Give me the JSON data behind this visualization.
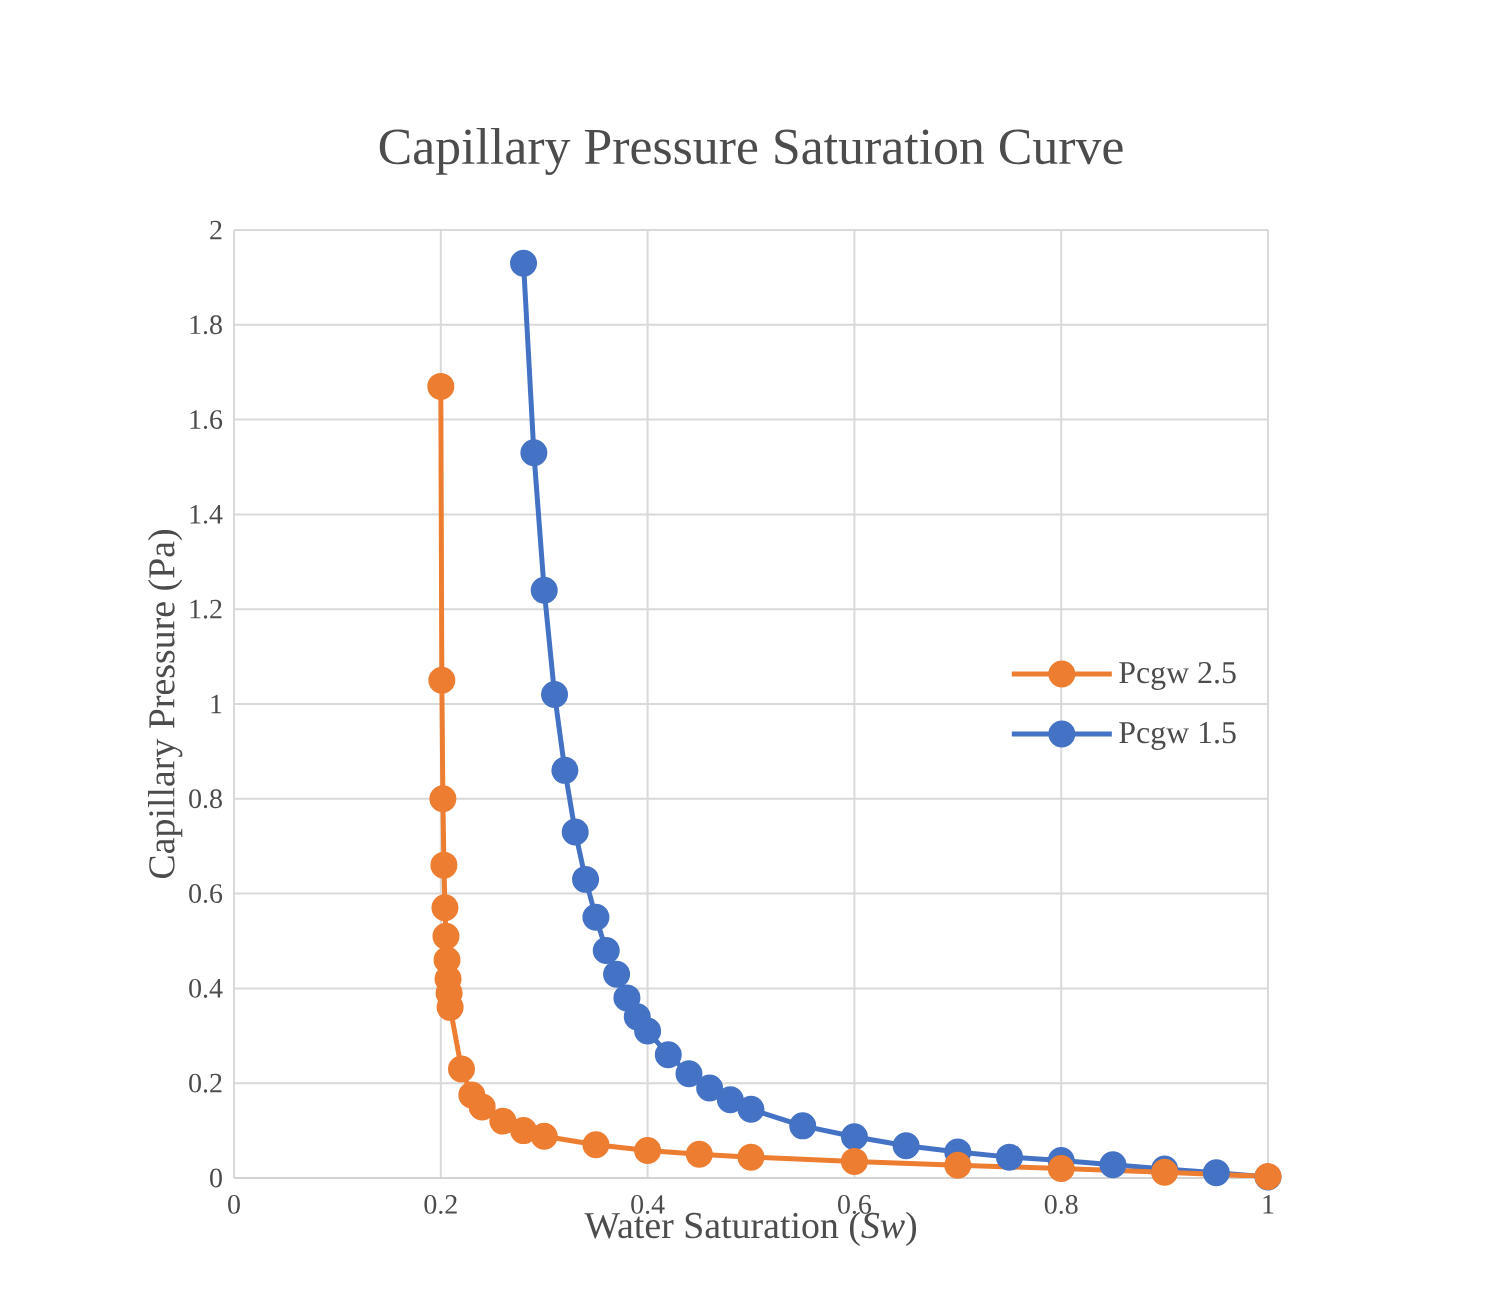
{
  "chart_data": {
    "type": "line",
    "title": "Capillary Pressure Saturation Curve",
    "xlabel": "Water Saturation (*Sw*)",
    "ylabel": "Capillary Pressure (Pa)",
    "xlim": [
      0,
      1
    ],
    "ylim": [
      0,
      2
    ],
    "xticks": [
      0,
      0.2,
      0.4,
      0.6,
      0.8,
      1
    ],
    "yticks": [
      0,
      0.2,
      0.4,
      0.6,
      0.8,
      1,
      1.2,
      1.4,
      1.6,
      1.8,
      2
    ],
    "grid": true,
    "legend": "right",
    "marker": "circle",
    "line_style": "solid",
    "series": [
      {
        "name": "Pcgw 2.5",
        "color": "#ed7d31",
        "x": [
          0.2,
          0.201,
          0.202,
          0.203,
          0.204,
          0.205,
          0.206,
          0.207,
          0.208,
          0.209,
          0.22,
          0.23,
          0.24,
          0.26,
          0.28,
          0.3,
          0.35,
          0.4,
          0.45,
          0.5,
          0.6,
          0.7,
          0.8,
          0.9,
          1.0
        ],
        "values": [
          1.67,
          1.05,
          0.8,
          0.66,
          0.57,
          0.51,
          0.46,
          0.42,
          0.39,
          0.36,
          0.23,
          0.175,
          0.15,
          0.12,
          0.1,
          0.088,
          0.07,
          0.058,
          0.05,
          0.044,
          0.035,
          0.027,
          0.02,
          0.012,
          0.003
        ]
      },
      {
        "name": "Pcgw 1.5",
        "color": "#4472c4",
        "x": [
          0.28,
          0.29,
          0.3,
          0.31,
          0.32,
          0.33,
          0.34,
          0.35,
          0.36,
          0.37,
          0.38,
          0.39,
          0.4,
          0.42,
          0.44,
          0.46,
          0.48,
          0.5,
          0.55,
          0.6,
          0.65,
          0.7,
          0.75,
          0.8,
          0.85,
          0.9,
          0.95,
          1.0
        ],
        "values": [
          1.93,
          1.53,
          1.24,
          1.02,
          0.86,
          0.73,
          0.63,
          0.55,
          0.48,
          0.43,
          0.38,
          0.34,
          0.31,
          0.26,
          0.22,
          0.19,
          0.165,
          0.145,
          0.11,
          0.087,
          0.068,
          0.055,
          0.044,
          0.037,
          0.028,
          0.019,
          0.011,
          0.002
        ]
      }
    ]
  }
}
